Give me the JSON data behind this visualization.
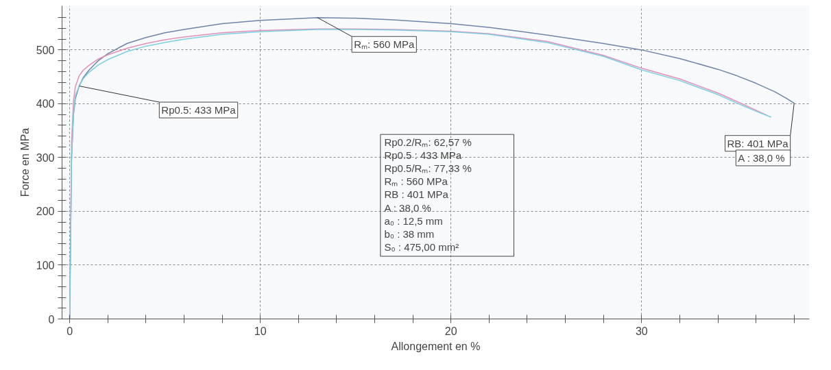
{
  "chart_data": {
    "type": "line",
    "xlabel": "Allongement en %",
    "ylabel": "Force en MPa",
    "xlim": [
      -0.4,
      38.8
    ],
    "ylim": [
      0,
      582
    ],
    "xticks": [
      0,
      {
        "value": 2,
        "label": null
      },
      {
        "value": 4,
        "label": null
      },
      {
        "value": 6,
        "label": null
      },
      {
        "value": 8,
        "label": null
      },
      10,
      {
        "value": 12,
        "label": null
      },
      {
        "value": 14,
        "label": null
      },
      {
        "value": 16,
        "label": null
      },
      {
        "value": 18,
        "label": null
      },
      20,
      {
        "value": 22,
        "label": null
      },
      {
        "value": 24,
        "label": null
      },
      {
        "value": 26,
        "label": null
      },
      {
        "value": 28,
        "label": null
      },
      30,
      {
        "value": 32,
        "label": null
      },
      {
        "value": 34,
        "label": null
      },
      {
        "value": 36,
        "label": null
      },
      {
        "value": 38,
        "label": null
      }
    ],
    "yticks": [
      0,
      {
        "value": 20,
        "label": null
      },
      {
        "value": 40,
        "label": null
      },
      {
        "value": 60,
        "label": null
      },
      {
        "value": 80,
        "label": null
      },
      100,
      {
        "value": 120,
        "label": null
      },
      {
        "value": 140,
        "label": null
      },
      {
        "value": 160,
        "label": null
      },
      {
        "value": 180,
        "label": null
      },
      200,
      {
        "value": 220,
        "label": null
      },
      {
        "value": 240,
        "label": null
      },
      {
        "value": 260,
        "label": null
      },
      {
        "value": 280,
        "label": null
      },
      300,
      {
        "value": 320,
        "label": null
      },
      {
        "value": 340,
        "label": null
      },
      {
        "value": 360,
        "label": null
      },
      {
        "value": 380,
        "label": null
      },
      400,
      {
        "value": 420,
        "label": null
      },
      {
        "value": 440,
        "label": null
      },
      {
        "value": 460,
        "label": null
      },
      {
        "value": 480,
        "label": null
      },
      500,
      {
        "value": 520,
        "label": null
      },
      {
        "value": 540,
        "label": null
      },
      {
        "value": 560,
        "label": null
      }
    ],
    "grid": true,
    "marker": "none",
    "line_style": "solid",
    "series": [
      {
        "color": "#6f84a8",
        "x": [
          0,
          0.05,
          0.1,
          0.2,
          0.3,
          0.5,
          0.7,
          1,
          1.5,
          2,
          3,
          4,
          5,
          6,
          8,
          10,
          13,
          15,
          17,
          20,
          22,
          25,
          28,
          30,
          32,
          34,
          35,
          36,
          37,
          37.6,
          38
        ],
        "values": [
          0,
          150,
          300,
          380,
          410,
          433,
          448,
          462,
          480,
          493,
          512,
          523,
          532,
          538,
          549,
          555,
          560,
          559,
          556,
          549,
          542,
          528,
          512,
          500,
          484,
          464,
          452,
          438,
          422,
          410,
          401
        ]
      },
      {
        "color": "#e090b8",
        "x": [
          0,
          0.05,
          0.1,
          0.2,
          0.3,
          0.5,
          0.7,
          1,
          1.5,
          2,
          3,
          4,
          5,
          6,
          8,
          10,
          13,
          15,
          17,
          20,
          22,
          25,
          28,
          30,
          32,
          34,
          35,
          36,
          36.6
        ],
        "values": [
          0,
          180,
          330,
          405,
          432,
          452,
          462,
          471,
          483,
          491,
          503,
          512,
          519,
          524,
          532,
          536,
          539,
          539,
          538,
          535,
          530,
          516,
          490,
          466,
          446,
          420,
          404,
          388,
          378
        ]
      },
      {
        "color": "#7ccfe0",
        "x": [
          0,
          0.05,
          0.1,
          0.2,
          0.3,
          0.5,
          0.7,
          1,
          1.5,
          2,
          3,
          4,
          5,
          6,
          8,
          10,
          13,
          15,
          17,
          20,
          22,
          25,
          28,
          30,
          32,
          34,
          35,
          36,
          36.8
        ],
        "values": [
          0,
          160,
          300,
          385,
          415,
          433,
          446,
          458,
          472,
          482,
          497,
          507,
          514,
          520,
          529,
          534,
          538,
          538,
          537,
          534,
          529,
          514,
          488,
          463,
          443,
          417,
          401,
          386,
          375
        ]
      }
    ],
    "annotations": [
      {
        "text": "Rp0.5: 433 MPa",
        "x": 0.5,
        "y": 433
      },
      {
        "text": "Rₘ: 560 MPa",
        "x": 13,
        "y": 560
      },
      {
        "text": "RB: 401 MPa",
        "x": 38,
        "y": 401
      },
      "A  : 38,0 %",
      "Rp0.2/Rₘ: 62,57 %",
      "Rp0.5 : 433 MPa",
      "Rp0.5/Rₘ: 77,33 %",
      "Rₘ : 560 MPa",
      "RB : 401 MPa",
      "A : 38,0 %",
      "a₀ : 12,5 mm",
      "b₀ : 38 mm",
      "S₀ : 475,00 mm²"
    ]
  }
}
